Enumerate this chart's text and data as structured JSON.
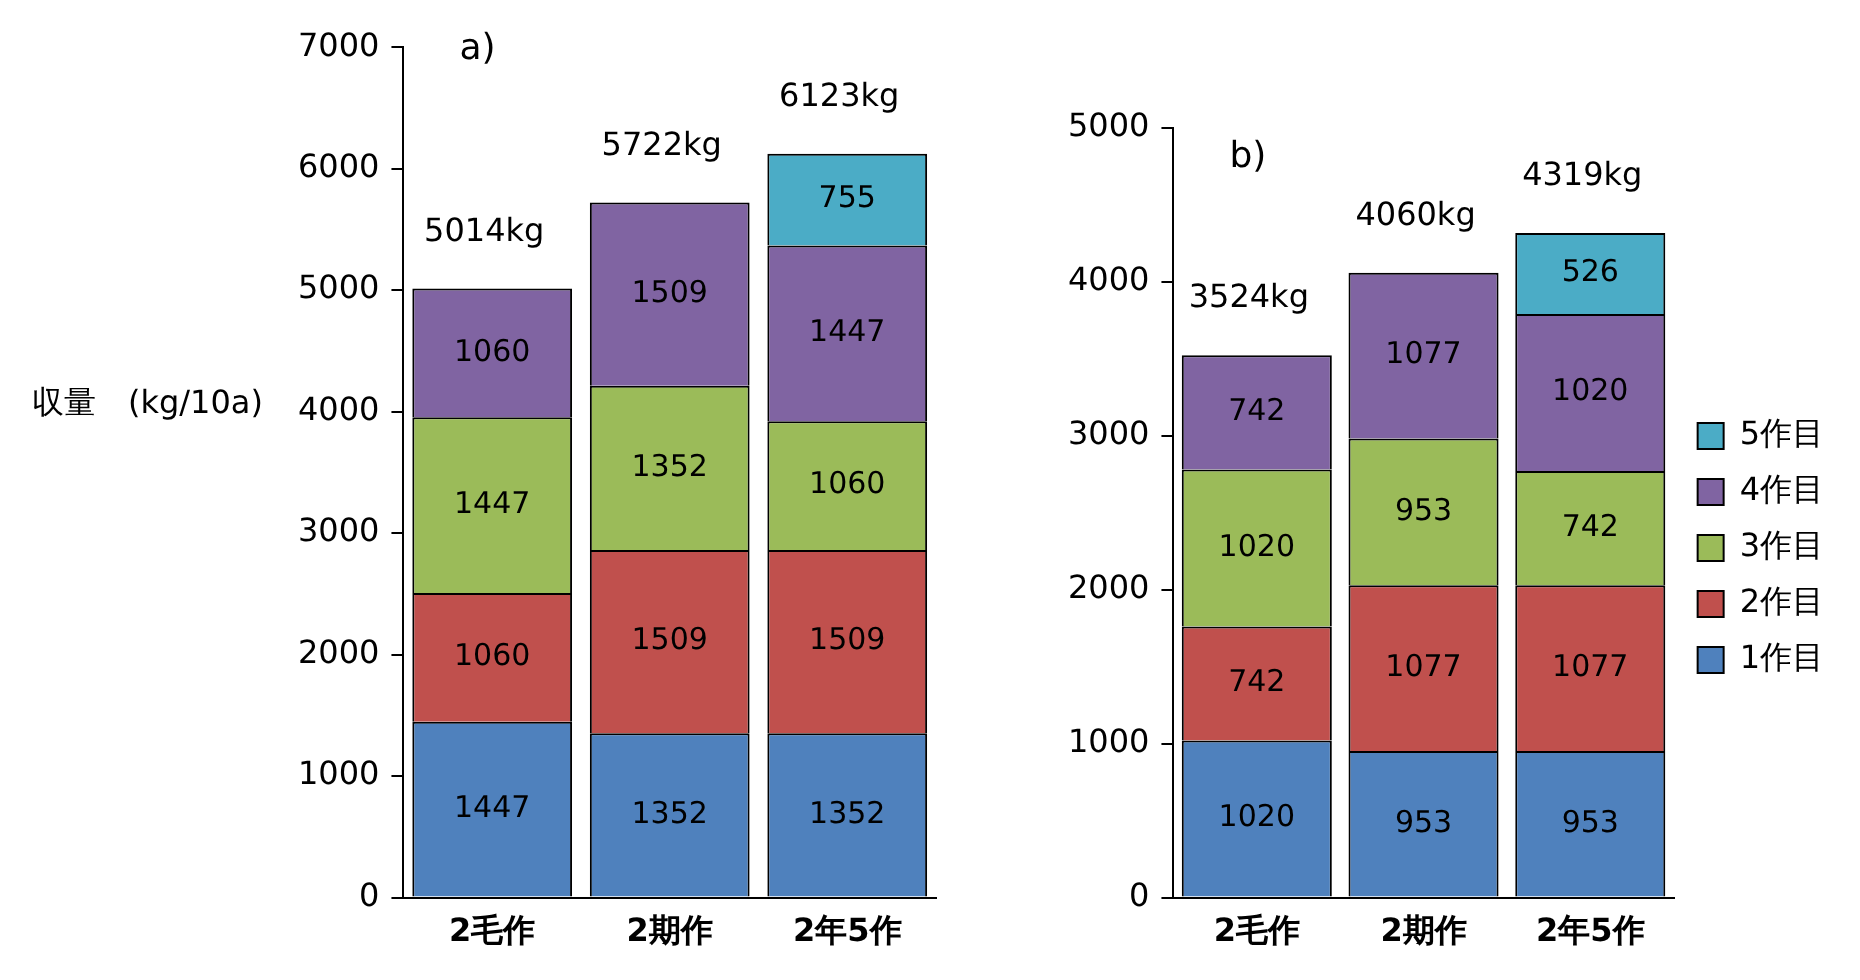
{
  "chart_data": [
    {
      "type": "bar",
      "title": "a)",
      "ylabel": "収量　(kg/10a)",
      "categories": [
        "2毛作",
        "2期作",
        "2年5作"
      ],
      "stacked": true,
      "data_labels": true,
      "totals": [
        "5014kg",
        "5722kg",
        "6123kg"
      ],
      "ylim": [
        0,
        7000
      ],
      "yticks": [
        0,
        1000,
        2000,
        3000,
        4000,
        5000,
        6000,
        7000
      ],
      "grid": false,
      "legend": false,
      "series": [
        {
          "color": "#4f81bd",
          "values": [
            1447,
            1352,
            1352
          ]
        },
        {
          "color": "#c0504d",
          "values": [
            1060,
            1509,
            1509
          ]
        },
        {
          "color": "#9bbb59",
          "values": [
            1447,
            1352,
            1060
          ]
        },
        {
          "color": "#8064a2",
          "values": [
            1060,
            1509,
            1447
          ]
        },
        {
          "color": "#4bacc6",
          "values": [
            null,
            null,
            755
          ]
        }
      ]
    },
    {
      "type": "bar",
      "title": "b)",
      "categories": [
        "2毛作",
        "2期作",
        "2年5作"
      ],
      "stacked": true,
      "data_labels": true,
      "totals": [
        "3524kg",
        "4060kg",
        "4319kg"
      ],
      "ylim": [
        0,
        5000
      ],
      "yticks": [
        0,
        1000,
        2000,
        3000,
        4000,
        5000
      ],
      "grid": false,
      "legend": "right",
      "series": [
        {
          "name": "1作目",
          "color": "#4f81bd",
          "values": [
            1020,
            953,
            953
          ]
        },
        {
          "name": "2作目",
          "color": "#c0504d",
          "values": [
            742,
            1077,
            1077
          ]
        },
        {
          "name": "3作目",
          "color": "#9bbb59",
          "values": [
            1020,
            953,
            742
          ]
        },
        {
          "name": "4作目",
          "color": "#8064a2",
          "values": [
            742,
            1077,
            1020
          ]
        },
        {
          "name": "5作目",
          "color": "#4bacc6",
          "values": [
            null,
            null,
            526
          ]
        }
      ]
    }
  ]
}
